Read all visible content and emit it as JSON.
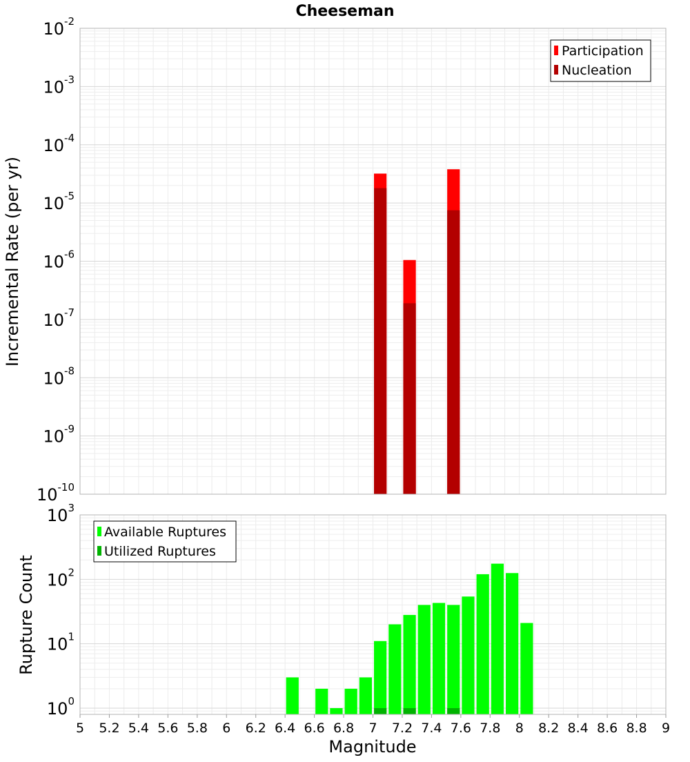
{
  "chart_data": [
    {
      "type": "bar",
      "title": "Cheeseman",
      "ylabel": "Incremental Rate (per yr)",
      "xlabel": "",
      "yscale": "log",
      "ylim_exponents": [
        -10,
        -2
      ],
      "xlim": [
        5,
        9
      ],
      "bar_width": 0.1,
      "legend_position": "top-right",
      "series": [
        {
          "name": "Participation",
          "color": "#ff0000",
          "x": [
            7.05,
            7.25,
            7.55
          ],
          "values": [
            3.2e-05,
            1.05e-06,
            3.8e-05
          ]
        },
        {
          "name": "Nucleation",
          "color": "#b30000",
          "x": [
            7.05,
            7.25,
            7.55
          ],
          "values": [
            1.8e-05,
            1.9e-07,
            7.5e-06
          ]
        }
      ]
    },
    {
      "type": "bar",
      "title": "",
      "ylabel": "Rupture Count",
      "xlabel": "Magnitude",
      "yscale": "log",
      "ylim_exponents": [
        0,
        3
      ],
      "ymin": 0.8,
      "xlim": [
        5,
        9
      ],
      "bar_width": 0.1,
      "legend_position": "top-left",
      "series": [
        {
          "name": "Available Ruptures",
          "color": "#00ff00",
          "x": [
            6.45,
            6.65,
            6.75,
            6.85,
            6.95,
            7.05,
            7.15,
            7.25,
            7.35,
            7.45,
            7.55,
            7.65,
            7.75,
            7.85,
            7.95,
            8.05
          ],
          "values": [
            3,
            2,
            1,
            2,
            3,
            11,
            20,
            28,
            40,
            43,
            40,
            54,
            120,
            175,
            125,
            21
          ]
        },
        {
          "name": "Utilized Ruptures",
          "color": "#00b300",
          "x": [
            7.05,
            7.25,
            7.55
          ],
          "values": [
            1,
            1,
            1
          ]
        }
      ]
    }
  ],
  "x_ticks": [
    "5",
    "5.2",
    "5.4",
    "5.6",
    "5.8",
    "6",
    "6.2",
    "6.4",
    "6.6",
    "6.8",
    "7",
    "7.2",
    "7.4",
    "7.6",
    "7.8",
    "8",
    "8.2",
    "8.4",
    "8.6",
    "8.8",
    "9"
  ],
  "top_y_ticks": [
    {
      "base": "10",
      "exp": "-2"
    },
    {
      "base": "10",
      "exp": "-3"
    },
    {
      "base": "10",
      "exp": "-4"
    },
    {
      "base": "10",
      "exp": "-5"
    },
    {
      "base": "10",
      "exp": "-6"
    },
    {
      "base": "10",
      "exp": "-7"
    },
    {
      "base": "10",
      "exp": "-8"
    },
    {
      "base": "10",
      "exp": "-9"
    },
    {
      "base": "10",
      "exp": "-10"
    }
  ],
  "bottom_y_ticks": [
    {
      "base": "10",
      "exp": "3"
    },
    {
      "base": "10",
      "exp": "2"
    },
    {
      "base": "10",
      "exp": "1"
    },
    {
      "base": "10",
      "exp": "0"
    }
  ]
}
